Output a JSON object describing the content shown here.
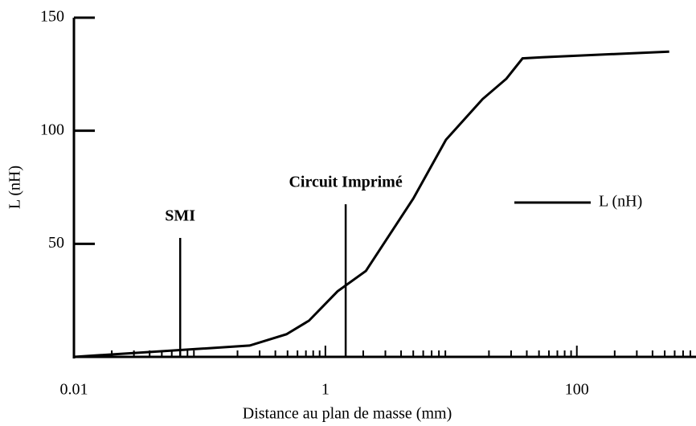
{
  "chart_data": {
    "type": "line",
    "x_label": "Distance au plan de masse (mm)",
    "y_label": "L (nH)",
    "x": [
      0.01,
      0.25,
      0.49,
      0.74,
      1.25,
      2.1,
      5.0,
      9.1,
      17.8,
      27.5,
      37,
      53,
      543
    ],
    "series": [
      {
        "name": "L (nH)",
        "color": "#000000",
        "values": [
          0,
          5,
          10,
          16,
          29,
          38,
          70,
          96,
          114,
          123,
          132,
          132.5,
          135
        ]
      }
    ],
    "xlim": [
      0.01,
      800
    ],
    "xticks": [
      0.01,
      1,
      100
    ],
    "xscale": "log",
    "ylim": [
      0,
      150
    ],
    "yticks": [
      50,
      100,
      150
    ],
    "legend": "right",
    "annotations": [
      {
        "text": "SMI",
        "x": 0.07,
        "y": 52.6
      },
      {
        "text": "Circuit Imprimé",
        "x": 1.45,
        "y": 67.5
      }
    ]
  }
}
